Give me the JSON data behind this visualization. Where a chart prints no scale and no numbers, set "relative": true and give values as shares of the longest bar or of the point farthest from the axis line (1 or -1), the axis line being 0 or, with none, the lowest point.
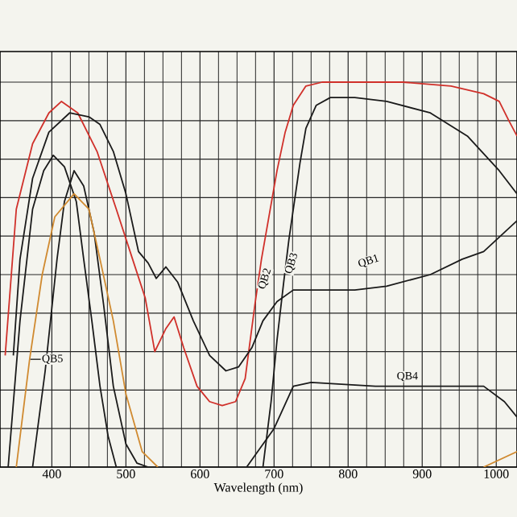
{
  "chart_data": {
    "type": "line",
    "relative": true,
    "xlabel": "Wavelength  (nm)",
    "xlim": [
      330,
      1028
    ],
    "xticks": [
      400,
      500,
      600,
      700,
      800,
      900,
      1000
    ],
    "grid": true,
    "marker": "none",
    "line_style": "solid",
    "series": [
      {
        "name": "QB2",
        "color": "#d0302a",
        "x": [
          337,
          352,
          374,
          396,
          413,
          435,
          461,
          487,
          509,
          526,
          539,
          554,
          565,
          578,
          596,
          613,
          630,
          648,
          661,
          674,
          683,
          693,
          704,
          715,
          726,
          743,
          765,
          874,
          939,
          983,
          1004,
          1017,
          1028
        ],
        "values": [
          0.29,
          0.67,
          0.84,
          0.92,
          0.95,
          0.92,
          0.82,
          0.67,
          0.54,
          0.44,
          0.3,
          0.36,
          0.39,
          0.31,
          0.21,
          0.17,
          0.16,
          0.17,
          0.23,
          0.42,
          0.54,
          0.65,
          0.77,
          0.87,
          0.94,
          0.99,
          1.0,
          1.0,
          0.99,
          0.97,
          0.95,
          0.9,
          0.86
        ]
      },
      {
        "name": "QB3",
        "color": "#1a1a1a",
        "x": [
          685,
          696,
          704,
          713,
          720,
          726,
          735,
          743,
          757,
          776,
          809,
          852,
          911,
          961,
          1004,
          1028
        ],
        "values": [
          0,
          0.17,
          0.33,
          0.48,
          0.59,
          0.67,
          0.79,
          0.88,
          0.94,
          0.96,
          0.96,
          0.95,
          0.92,
          0.86,
          0.77,
          0.71
        ]
      },
      {
        "name": "QB1",
        "color": "#1a1a1a",
        "x": [
          348,
          357,
          374,
          396,
          424,
          450,
          465,
          483,
          500,
          517,
          530,
          541,
          554,
          570,
          591,
          613,
          635,
          652,
          670,
          685,
          704,
          726,
          765,
          809,
          852,
          911,
          954,
          983,
          1028
        ],
        "values": [
          0.29,
          0.54,
          0.75,
          0.87,
          0.92,
          0.91,
          0.89,
          0.82,
          0.71,
          0.56,
          0.53,
          0.49,
          0.52,
          0.48,
          0.38,
          0.29,
          0.25,
          0.26,
          0.31,
          0.38,
          0.43,
          0.46,
          0.46,
          0.46,
          0.47,
          0.5,
          0.54,
          0.56,
          0.64
        ]
      },
      {
        "name": "QB4",
        "color": "#1a1a1a",
        "x": [
          663,
          700,
          726,
          750,
          837,
          961,
          983,
          1011,
          1028
        ],
        "values": [
          0,
          0.1,
          0.21,
          0.22,
          0.21,
          0.21,
          0.21,
          0.17,
          0.13
        ]
      },
      {
        "color": "#1a1a1a",
        "x": [
          341,
          357,
          374,
          389,
          402,
          417,
          433,
          443,
          454,
          465,
          476,
          487
        ],
        "values": [
          0,
          0.38,
          0.67,
          0.77,
          0.81,
          0.78,
          0.69,
          0.54,
          0.38,
          0.21,
          0.08,
          0
        ]
      },
      {
        "color": "#1a1a1a",
        "x": [
          374,
          391,
          407,
          417,
          430,
          443,
          457,
          470,
          483,
          500,
          515,
          530
        ],
        "values": [
          0,
          0.25,
          0.54,
          0.69,
          0.77,
          0.73,
          0.61,
          0.42,
          0.21,
          0.06,
          0.01,
          0
        ]
      },
      {
        "name": "QB5",
        "color": "#d08a30",
        "x": [
          352,
          370,
          387,
          404,
          430,
          450,
          465,
          483,
          500,
          522,
          543,
          700,
          983,
          1028
        ],
        "values": [
          0,
          0.28,
          0.5,
          0.65,
          0.71,
          0.67,
          0.54,
          0.38,
          0.19,
          0.04,
          0,
          null,
          0,
          0.04
        ]
      }
    ]
  }
}
